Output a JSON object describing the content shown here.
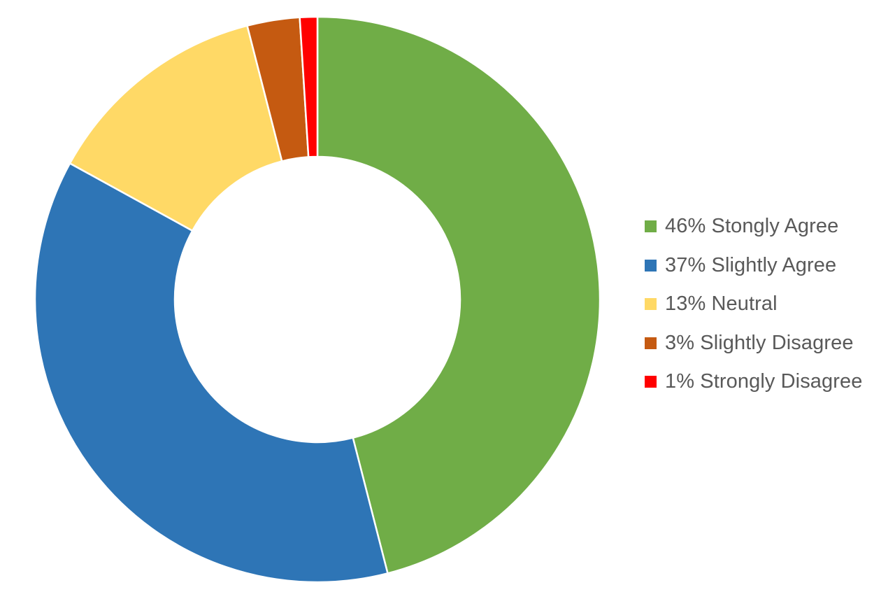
{
  "chart_data": {
    "type": "pie",
    "donut": true,
    "title": "",
    "legend_position": "right",
    "slices": [
      {
        "label": "46% Stongly Agree",
        "value": 46,
        "color": "#70AD47"
      },
      {
        "label": "37% Slightly Agree",
        "value": 37,
        "color": "#2E75B6"
      },
      {
        "label": "13% Neutral",
        "value": 13,
        "color": "#FFD966"
      },
      {
        "label": "3% Slightly Disagree",
        "value": 3,
        "color": "#C55A11"
      },
      {
        "label": "1% Strongly Disagree",
        "value": 1,
        "color": "#FF0000"
      }
    ]
  }
}
